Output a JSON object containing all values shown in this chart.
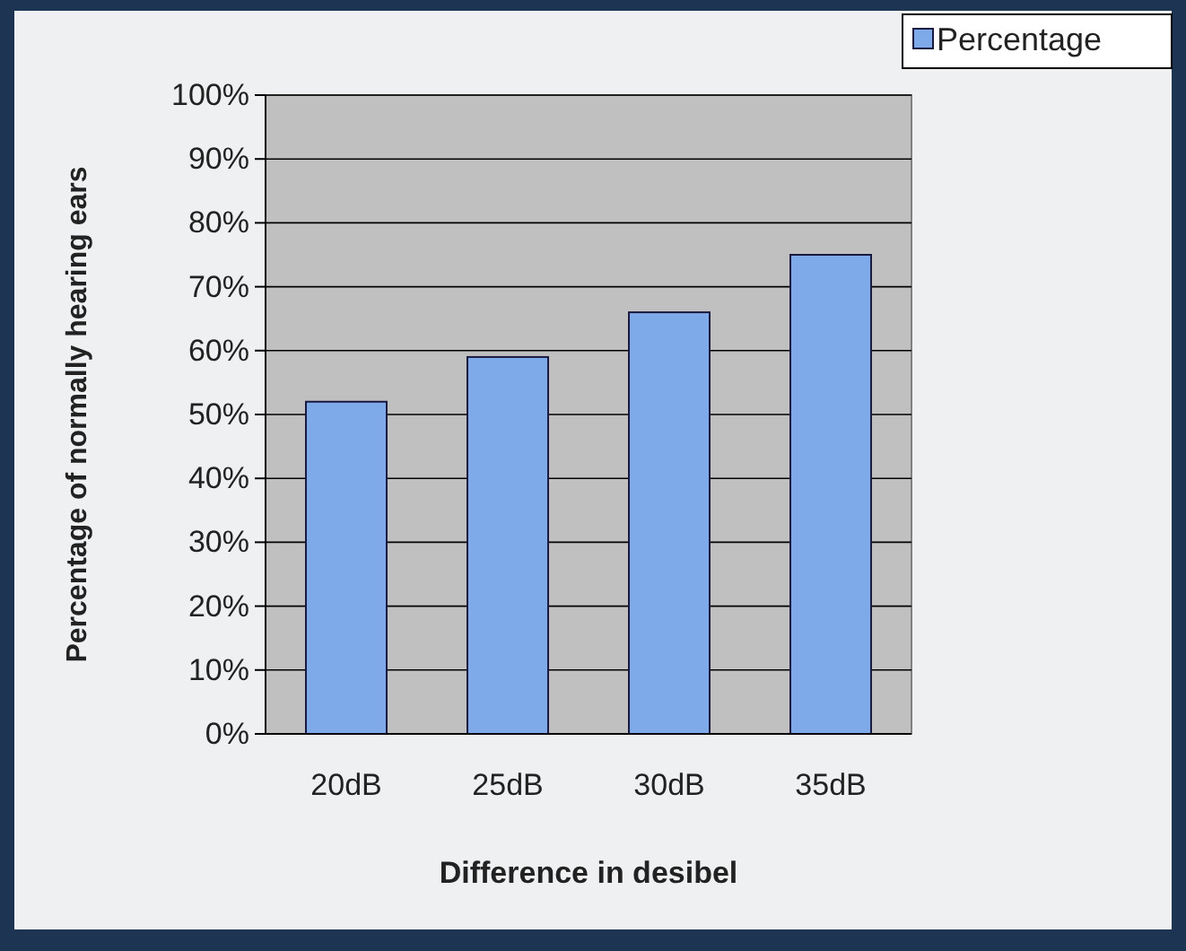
{
  "chart_data": {
    "type": "bar",
    "xlabel": "Difference in desibel",
    "ylabel": "Percentage of normally hearing ears",
    "categories": [
      "20dB",
      "25dB",
      "30dB",
      "35dB"
    ],
    "series": [
      {
        "name": "Percentage",
        "color": "#7eaaea",
        "values": [
          52,
          59,
          66,
          75
        ]
      }
    ],
    "ylim": [
      0,
      100
    ],
    "yticks": [
      {
        "value": 0,
        "label": "0%"
      },
      {
        "value": 10,
        "label": "10%"
      },
      {
        "value": 20,
        "label": "20%"
      },
      {
        "value": 30,
        "label": "30%"
      },
      {
        "value": 40,
        "label": "40%"
      },
      {
        "value": 50,
        "label": "50%"
      },
      {
        "value": 60,
        "label": "60%"
      },
      {
        "value": 70,
        "label": "70%"
      },
      {
        "value": 80,
        "label": "80%"
      },
      {
        "value": 90,
        "label": "90%"
      },
      {
        "value": 100,
        "label": "100%"
      }
    ],
    "grid": "y",
    "legend": "top right"
  }
}
